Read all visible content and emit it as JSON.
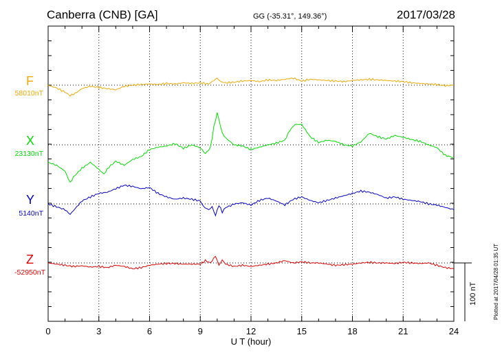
{
  "header": {
    "station": "Canberra (CNB)  [GA]",
    "coords": "GG (-35.31°, 149.36°)",
    "date": "2017/03/28"
  },
  "footer_note": "Plotted at 2017/04/28 01:35 UT",
  "colors": {
    "F": "#f0a800",
    "X": "#00dd00",
    "Y": "#0000cc",
    "Z": "#e00000",
    "axis": "#000000"
  },
  "chart_data": {
    "type": "line",
    "xlabel": "U T (hour)",
    "xlim": [
      0,
      24
    ],
    "xticks": [
      "0",
      "3",
      "6",
      "9",
      "12",
      "15",
      "18",
      "21",
      "24"
    ],
    "scale_bar": "100 nT",
    "series": [
      {
        "name": "F",
        "baseline": "58010nT",
        "x": [
          0,
          0.5,
          1.0,
          1.3,
          1.6,
          2.0,
          2.5,
          3.0,
          3.5,
          4.0,
          4.5,
          5.0,
          5.5,
          6.0,
          6.5,
          7.0,
          7.5,
          8.0,
          8.5,
          9.0,
          9.5,
          9.8,
          10.0,
          10.2,
          10.5,
          11.0,
          11.5,
          12.0,
          12.5,
          13.0,
          13.5,
          14.0,
          14.5,
          14.8,
          15.0,
          15.5,
          16.0,
          16.5,
          17.0,
          17.5,
          18.0,
          18.5,
          19.0,
          19.5,
          20.0,
          20.5,
          21.0,
          21.5,
          22.0,
          22.5,
          23.0,
          23.5,
          24.0
        ],
        "y": [
          0,
          -5,
          -12,
          -18,
          -14,
          -6,
          -2,
          -4,
          -6,
          -8,
          -2,
          0,
          1,
          2,
          1,
          3,
          2,
          4,
          3,
          4,
          2,
          8,
          12,
          6,
          4,
          5,
          7,
          8,
          6,
          9,
          8,
          10,
          12,
          9,
          7,
          10,
          9,
          8,
          7,
          6,
          8,
          9,
          10,
          9,
          8,
          7,
          6,
          4,
          3,
          2,
          1,
          -1,
          0
        ]
      },
      {
        "name": "X",
        "baseline": "23130nT",
        "x": [
          0,
          0.5,
          1.0,
          1.3,
          1.5,
          2.0,
          2.5,
          3.0,
          3.3,
          3.6,
          4.0,
          4.5,
          5.0,
          5.5,
          6.0,
          6.5,
          7.0,
          7.5,
          8.0,
          8.5,
          9.0,
          9.3,
          9.6,
          9.8,
          10.0,
          10.3,
          10.5,
          11.0,
          11.5,
          12.0,
          12.5,
          13.0,
          13.5,
          14.0,
          14.3,
          14.6,
          15.0,
          15.5,
          16.0,
          16.5,
          17.0,
          17.5,
          18.0,
          18.5,
          19.0,
          19.5,
          20.0,
          20.5,
          21.0,
          21.5,
          22.0,
          22.5,
          23.0,
          23.5,
          24.0
        ],
        "y": [
          -30,
          -35,
          -45,
          -65,
          -55,
          -40,
          -30,
          -42,
          -50,
          -38,
          -28,
          -35,
          -25,
          -20,
          -8,
          -4,
          -2,
          2,
          -6,
          0,
          -5,
          -15,
          -5,
          30,
          55,
          20,
          12,
          0,
          -2,
          -8,
          -4,
          0,
          3,
          8,
          25,
          35,
          35,
          14,
          4,
          8,
          6,
          0,
          -2,
          5,
          20,
          14,
          10,
          16,
          13,
          9,
          6,
          0,
          -5,
          -18,
          -22
        ]
      },
      {
        "name": "Y",
        "baseline": "5140nT",
        "x": [
          0,
          0.5,
          1.0,
          1.3,
          1.6,
          2.0,
          2.5,
          3.0,
          3.5,
          4.0,
          4.5,
          5.0,
          5.5,
          6.0,
          6.5,
          7.0,
          7.5,
          8.0,
          8.5,
          9.0,
          9.2,
          9.5,
          9.7,
          9.9,
          10.1,
          10.3,
          10.5,
          10.8,
          11.0,
          11.5,
          12.0,
          12.5,
          13.0,
          13.5,
          14.0,
          14.5,
          15.0,
          15.5,
          16.0,
          16.5,
          17.0,
          17.5,
          18.0,
          18.5,
          19.0,
          19.5,
          20.0,
          20.5,
          21.0,
          21.5,
          22.0,
          22.5,
          23.0,
          23.5,
          24.0
        ],
        "y": [
          0,
          -5,
          -10,
          -18,
          -8,
          5,
          12,
          18,
          20,
          26,
          32,
          30,
          26,
          28,
          18,
          12,
          8,
          10,
          8,
          5,
          -5,
          -10,
          -5,
          -20,
          -2,
          -14,
          -6,
          -3,
          0,
          2,
          -2,
          6,
          10,
          5,
          -2,
          8,
          12,
          6,
          2,
          6,
          10,
          14,
          18,
          22,
          20,
          16,
          10,
          12,
          8,
          6,
          4,
          0,
          -2,
          -6,
          -10
        ]
      },
      {
        "name": "Z",
        "baseline": "-52950nT",
        "x": [
          0,
          0.5,
          1.0,
          1.5,
          2.0,
          2.5,
          3.0,
          3.5,
          4.0,
          4.5,
          5.0,
          5.5,
          6.0,
          6.5,
          7.0,
          7.5,
          8.0,
          8.5,
          9.0,
          9.3,
          9.6,
          9.9,
          10.1,
          10.3,
          10.5,
          11.0,
          11.5,
          12.0,
          12.5,
          13.0,
          13.5,
          14.0,
          14.5,
          15.0,
          15.5,
          16.0,
          16.5,
          17.0,
          17.5,
          18.0,
          18.5,
          19.0,
          19.5,
          20.0,
          20.5,
          21.0,
          21.5,
          22.0,
          22.5,
          23.0,
          23.5,
          24.0
        ],
        "y": [
          0,
          -2,
          -4,
          -6,
          -5,
          -7,
          -6,
          -8,
          -4,
          -6,
          -10,
          -8,
          -4,
          -2,
          -1,
          -1,
          -2,
          -2,
          -2,
          4,
          0,
          12,
          -4,
          5,
          -2,
          -6,
          -4,
          -6,
          -4,
          -2,
          0,
          4,
          0,
          2,
          0,
          0,
          -2,
          -4,
          -3,
          -2,
          0,
          1,
          0,
          0,
          -1,
          1,
          0,
          -1,
          0,
          -4,
          -8,
          -10
        ]
      }
    ]
  }
}
